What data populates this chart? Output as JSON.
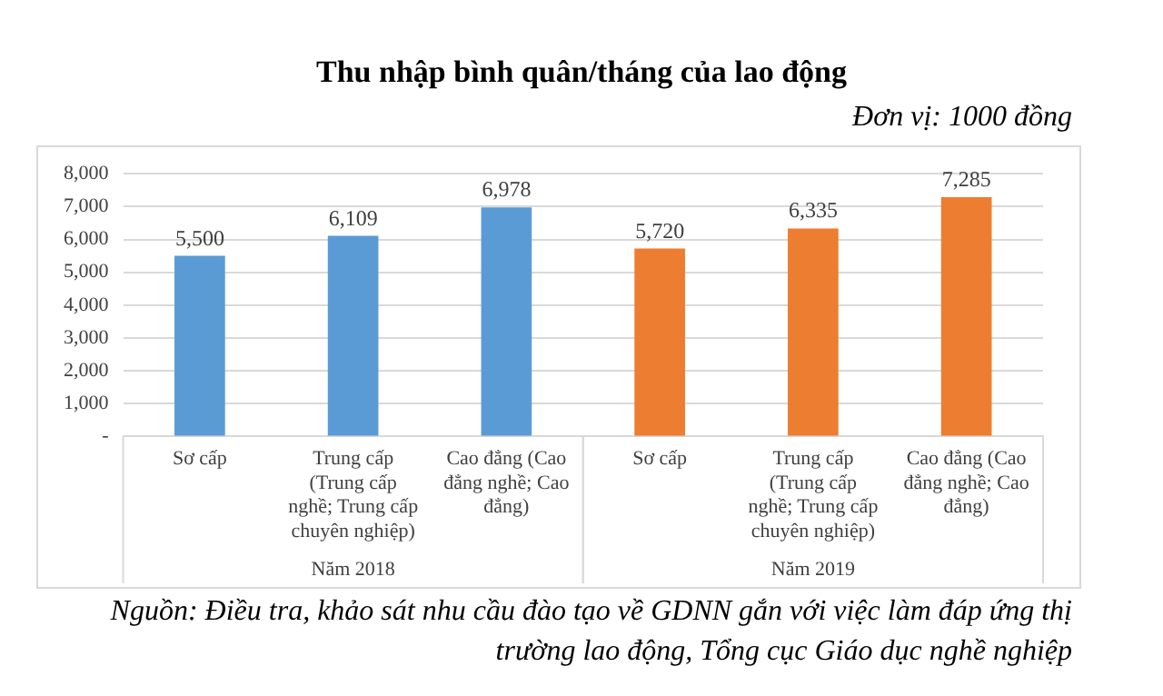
{
  "chart_data": {
    "type": "bar",
    "title": "Thu nhập bình quân/tháng của lao động",
    "categories": [
      "Sơ cấp",
      "Trung cấp (Trung cấp nghề; Trung cấp chuyên nghiệp)",
      "Cao đẳng (Cao đẳng nghề; Cao đẳng)",
      "Sơ cấp",
      "Trung cấp (Trung cấp nghề; Trung cấp chuyên nghiệp)",
      "Cao đẳng (Cao đẳng nghề; Cao đẳng)"
    ],
    "values": [
      5500,
      6109,
      6978,
      5720,
      6335,
      7285
    ],
    "colors": [
      "#5b9bd5",
      "#5b9bd5",
      "#5b9bd5",
      "#ed7d31",
      "#ed7d31",
      "#ed7d31"
    ],
    "value_labels": [
      "5,500",
      "6,109",
      "6,978",
      "5,720",
      "6,335",
      "7,285"
    ],
    "ylim": [
      0,
      8000
    ],
    "yticks": [
      {
        "value": 0,
        "label": "-"
      },
      {
        "value": 1000,
        "label": "1,000"
      },
      {
        "value": 2000,
        "label": "2,000"
      },
      {
        "value": 3000,
        "label": "3,000"
      },
      {
        "value": 4000,
        "label": "4,000"
      },
      {
        "value": 5000,
        "label": "5,000"
      },
      {
        "value": 6000,
        "label": "6,000"
      },
      {
        "value": 7000,
        "label": "7,000"
      },
      {
        "value": 8000,
        "label": "8,000"
      }
    ],
    "grid": "y",
    "legend": false,
    "annotations": [
      "Đơn vị: 1000 đồng",
      "Năm 2018",
      "Năm 2019",
      "Nguồn: Điều tra, khảo sát nhu cầu đào tạo về GDNN gắn với việc làm đáp ứng thị trường lao động, Tổng cục Giáo dục nghề nghiệp"
    ]
  }
}
